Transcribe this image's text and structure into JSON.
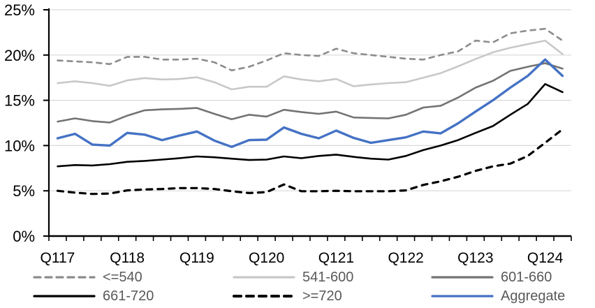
{
  "chart_data": {
    "type": "line",
    "title": "",
    "n_points": 30,
    "x_quarters": [
      "Q1 2017",
      "Q2 2017",
      "Q3 2017",
      "Q4 2017",
      "Q1 2018",
      "Q2 2018",
      "Q3 2018",
      "Q4 2018",
      "Q1 2019",
      "Q2 2019",
      "Q3 2019",
      "Q4 2019",
      "Q1 2020",
      "Q2 2020",
      "Q3 2020",
      "Q4 2020",
      "Q1 2021",
      "Q2 2021",
      "Q3 2021",
      "Q4 2021",
      "Q1 2022",
      "Q2 2022",
      "Q3 2022",
      "Q4 2022",
      "Q1 2023",
      "Q2 2023",
      "Q3 2023",
      "Q4 2023",
      "Q1 2024",
      "Q2 2024"
    ],
    "x_tick_labels": [
      "Q117",
      "Q118",
      "Q119",
      "Q120",
      "Q121",
      "Q122",
      "Q123",
      "Q124"
    ],
    "x_tick_every": 4,
    "y_tick_labels": [
      "0%",
      "5%",
      "10%",
      "15%",
      "20%",
      "25%"
    ],
    "ylim": [
      0,
      25
    ],
    "grid": true,
    "legend_position": "bottom",
    "axis_color": "#000000",
    "gridline_color": "#D9D9D9",
    "label_color": "#000000",
    "legend_text_color": "#595959",
    "series": [
      {
        "name": "<=540",
        "color": "#8C8C8C",
        "style": "dashed",
        "width": 2.6,
        "values": [
          19.4,
          19.3,
          19.2,
          19.0,
          19.8,
          19.8,
          19.5,
          19.5,
          19.6,
          19.2,
          18.3,
          18.7,
          19.4,
          20.2,
          20.0,
          19.9,
          20.7,
          20.2,
          20.0,
          19.8,
          19.6,
          19.5,
          20.0,
          20.4,
          21.6,
          21.4,
          22.4,
          22.7,
          22.9,
          21.6
        ]
      },
      {
        "name": "541-600",
        "color": "#C8C8C8",
        "style": "solid",
        "width": 2.6,
        "values": [
          16.9,
          17.1,
          16.9,
          16.6,
          17.2,
          17.45,
          17.3,
          17.35,
          17.55,
          17.0,
          16.2,
          16.5,
          16.5,
          17.65,
          17.3,
          17.1,
          17.35,
          16.55,
          16.75,
          16.9,
          17.0,
          17.5,
          18.0,
          18.75,
          19.55,
          20.3,
          20.8,
          21.2,
          21.6,
          20.1
        ]
      },
      {
        "name": "601-660",
        "color": "#737373",
        "style": "solid",
        "width": 2.6,
        "values": [
          12.65,
          13.0,
          12.7,
          12.55,
          13.3,
          13.9,
          14.0,
          14.05,
          14.15,
          13.5,
          12.9,
          13.4,
          13.2,
          13.95,
          13.7,
          13.5,
          13.75,
          13.1,
          13.05,
          13.0,
          13.4,
          14.2,
          14.4,
          15.3,
          16.4,
          17.15,
          18.25,
          18.7,
          19.1,
          18.5
        ]
      },
      {
        "name": "661-720",
        "color": "#000000",
        "style": "solid",
        "width": 2.6,
        "values": [
          7.7,
          7.85,
          7.8,
          7.95,
          8.2,
          8.3,
          8.45,
          8.6,
          8.8,
          8.7,
          8.55,
          8.4,
          8.45,
          8.8,
          8.6,
          8.85,
          9.0,
          8.75,
          8.55,
          8.45,
          8.85,
          9.5,
          10.0,
          10.6,
          11.4,
          12.15,
          13.4,
          14.6,
          16.8,
          15.9
        ]
      },
      {
        "name": ">=720",
        "color": "#000000",
        "style": "dashed-bold",
        "width": 3.2,
        "values": [
          5.0,
          4.8,
          4.65,
          4.7,
          5.05,
          5.15,
          5.2,
          5.3,
          5.3,
          5.2,
          4.95,
          4.75,
          4.85,
          5.7,
          4.95,
          4.95,
          5.0,
          4.95,
          4.95,
          4.95,
          5.05,
          5.65,
          6.05,
          6.55,
          7.2,
          7.7,
          8.0,
          8.85,
          10.3,
          11.8
        ]
      },
      {
        "name": "Aggregate",
        "color": "#4472C4",
        "style": "solid",
        "width": 3.4,
        "values": [
          10.8,
          11.3,
          10.1,
          10.0,
          11.4,
          11.2,
          10.6,
          11.1,
          11.55,
          10.55,
          9.85,
          10.6,
          10.65,
          12.0,
          11.3,
          10.8,
          11.65,
          10.85,
          10.3,
          10.6,
          10.9,
          11.55,
          11.35,
          12.45,
          13.75,
          15.0,
          16.4,
          17.7,
          19.5,
          17.7
        ]
      }
    ]
  }
}
